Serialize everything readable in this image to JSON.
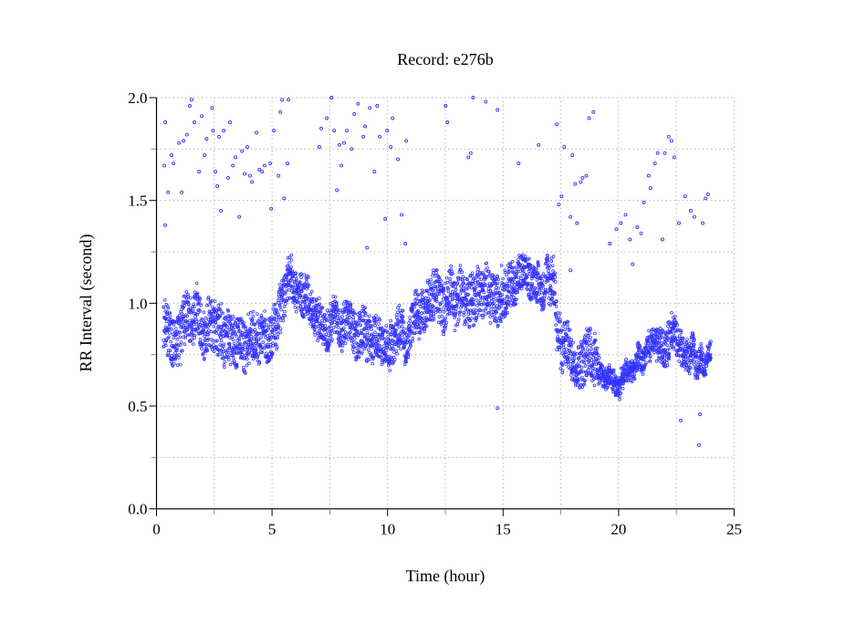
{
  "chart_data": {
    "type": "scatter",
    "title": "Record:  e276b",
    "xlabel": "Time (hour)",
    "ylabel": "RR Interval (second)",
    "xlim": [
      0,
      25
    ],
    "ylim": [
      0,
      2.0
    ],
    "xticks": [
      "0",
      "5",
      "10",
      "15",
      "20",
      "25"
    ],
    "xtick_values": [
      0,
      5,
      10,
      15,
      20,
      25
    ],
    "xminor_values": [
      2.5,
      7.5,
      12.5,
      17.5,
      22.5
    ],
    "yticks": [
      "0.0",
      "0.5",
      "1.0",
      "1.5",
      "2.0"
    ],
    "ytick_values": [
      0,
      0.5,
      1.0,
      1.5,
      2.0
    ],
    "yminor_values": [
      0.25,
      0.75,
      1.25,
      1.75
    ],
    "grid": true,
    "marker_color": "#3333ff",
    "series_note_profile": "dense RR series summarised as [hour, center, half-range]",
    "profile": [
      [
        0.3,
        0.85,
        0.15
      ],
      [
        1,
        0.88,
        0.15
      ],
      [
        2,
        0.92,
        0.15
      ],
      [
        3,
        0.85,
        0.15
      ],
      [
        4,
        0.85,
        0.15
      ],
      [
        4.8,
        0.78,
        0.15
      ],
      [
        5.2,
        0.9,
        0.15
      ],
      [
        5.7,
        1.08,
        0.12
      ],
      [
        6.5,
        1.05,
        0.12
      ],
      [
        6.8,
        0.9,
        0.12
      ],
      [
        8,
        0.88,
        0.12
      ],
      [
        9,
        0.85,
        0.15
      ],
      [
        9.5,
        0.8,
        0.13
      ],
      [
        10,
        0.8,
        0.12
      ],
      [
        10.5,
        0.88,
        0.12
      ],
      [
        10.8,
        0.8,
        0.1
      ],
      [
        11.2,
        1.0,
        0.12
      ],
      [
        12,
        1.02,
        0.15
      ],
      [
        13,
        1.0,
        0.15
      ],
      [
        14,
        1.05,
        0.15
      ],
      [
        15,
        1.05,
        0.15
      ],
      [
        15.5,
        1.1,
        0.12
      ],
      [
        16.5,
        1.12,
        0.1
      ],
      [
        17.2,
        1.05,
        0.15
      ],
      [
        17.5,
        0.8,
        0.15
      ],
      [
        18,
        0.72,
        0.12
      ],
      [
        18.5,
        0.78,
        0.15
      ],
      [
        19,
        0.8,
        0.15
      ],
      [
        19.3,
        0.68,
        0.06
      ],
      [
        20,
        0.66,
        0.06
      ],
      [
        21,
        0.68,
        0.07
      ],
      [
        21.5,
        0.75,
        0.08
      ],
      [
        21.8,
        0.8,
        0.1
      ],
      [
        22.3,
        0.85,
        0.12
      ],
      [
        22.6,
        0.72,
        0.1
      ],
      [
        23.5,
        0.73,
        0.08
      ],
      [
        24,
        0.76,
        0.05
      ]
    ],
    "outliers": [
      [
        0.34,
        1.67
      ],
      [
        0.38,
        1.88
      ],
      [
        0.38,
        1.38
      ],
      [
        0.5,
        1.54
      ],
      [
        0.65,
        1.72
      ],
      [
        0.73,
        1.68
      ],
      [
        0.97,
        1.78
      ],
      [
        1.09,
        1.54
      ],
      [
        1.17,
        1.79
      ],
      [
        1.32,
        1.82
      ],
      [
        1.44,
        1.96
      ],
      [
        1.52,
        1.99
      ],
      [
        1.64,
        1.88
      ],
      [
        1.84,
        1.64
      ],
      [
        1.96,
        1.91
      ],
      [
        2.08,
        1.72
      ],
      [
        2.17,
        1.8
      ],
      [
        2.41,
        1.95
      ],
      [
        2.45,
        1.84
      ],
      [
        2.55,
        1.64
      ],
      [
        2.63,
        1.57
      ],
      [
        2.71,
        1.81
      ],
      [
        2.79,
        1.45
      ],
      [
        2.91,
        1.84
      ],
      [
        3.1,
        1.61
      ],
      [
        3.18,
        1.88
      ],
      [
        3.3,
        1.67
      ],
      [
        3.42,
        1.71
      ],
      [
        3.58,
        1.42
      ],
      [
        3.7,
        1.74
      ],
      [
        3.81,
        1.63
      ],
      [
        3.93,
        1.76
      ],
      [
        4.05,
        1.62
      ],
      [
        4.13,
        1.59
      ],
      [
        4.33,
        1.83
      ],
      [
        4.45,
        1.65
      ],
      [
        4.57,
        1.64
      ],
      [
        4.68,
        1.67
      ],
      [
        4.92,
        1.68
      ],
      [
        4.96,
        1.46
      ],
      [
        5.08,
        1.84
      ],
      [
        5.28,
        1.62
      ],
      [
        5.36,
        1.93
      ],
      [
        5.44,
        1.99
      ],
      [
        5.52,
        1.51
      ],
      [
        5.71,
        1.99
      ],
      [
        5.67,
        1.68
      ],
      [
        7.05,
        1.76
      ],
      [
        7.13,
        1.85
      ],
      [
        7.37,
        1.9
      ],
      [
        7.57,
        2.0
      ],
      [
        7.69,
        1.84
      ],
      [
        7.81,
        1.55
      ],
      [
        7.92,
        1.77
      ],
      [
        8.0,
        1.67
      ],
      [
        8.12,
        1.78
      ],
      [
        8.24,
        1.84
      ],
      [
        8.44,
        1.75
      ],
      [
        8.56,
        1.92
      ],
      [
        8.72,
        1.97
      ],
      [
        8.95,
        1.81
      ],
      [
        9.03,
        1.86
      ],
      [
        9.11,
        1.27
      ],
      [
        9.23,
        1.95
      ],
      [
        9.43,
        1.64
      ],
      [
        9.55,
        1.96
      ],
      [
        9.66,
        1.81
      ],
      [
        9.9,
        1.41
      ],
      [
        9.98,
        1.84
      ],
      [
        10.14,
        1.76
      ],
      [
        10.22,
        1.9
      ],
      [
        10.45,
        1.7
      ],
      [
        10.61,
        1.43
      ],
      [
        10.81,
        1.79
      ],
      [
        10.77,
        1.29
      ],
      [
        12.51,
        1.96
      ],
      [
        12.59,
        1.88
      ],
      [
        13.7,
        2.0
      ],
      [
        13.5,
        1.71
      ],
      [
        13.6,
        1.73
      ],
      [
        14.25,
        1.98
      ],
      [
        14.76,
        1.94
      ],
      [
        14.76,
        0.49
      ],
      [
        15.67,
        1.68
      ],
      [
        16.54,
        1.77
      ],
      [
        17.33,
        1.87
      ],
      [
        17.41,
        1.48
      ],
      [
        17.53,
        1.52
      ],
      [
        17.65,
        1.76
      ],
      [
        17.92,
        1.42
      ],
      [
        18.0,
        1.72
      ],
      [
        18.12,
        1.58
      ],
      [
        18.2,
        1.39
      ],
      [
        18.36,
        1.59
      ],
      [
        18.44,
        1.61
      ],
      [
        18.6,
        1.62
      ],
      [
        18.72,
        1.9
      ],
      [
        18.91,
        1.93
      ],
      [
        17.92,
        1.16
      ],
      [
        19.62,
        1.29
      ],
      [
        19.9,
        1.36
      ],
      [
        20.1,
        1.39
      ],
      [
        20.3,
        1.43
      ],
      [
        20.49,
        1.31
      ],
      [
        20.61,
        1.19
      ],
      [
        20.81,
        1.37
      ],
      [
        20.97,
        1.34
      ],
      [
        21.09,
        1.49
      ],
      [
        21.3,
        1.62
      ],
      [
        21.38,
        1.56
      ],
      [
        21.57,
        1.68
      ],
      [
        21.69,
        1.73
      ],
      [
        21.9,
        1.31
      ],
      [
        22.0,
        1.73
      ],
      [
        22.17,
        1.81
      ],
      [
        22.29,
        1.79
      ],
      [
        22.41,
        1.71
      ],
      [
        22.61,
        1.39
      ],
      [
        22.69,
        0.43
      ],
      [
        22.88,
        1.52
      ],
      [
        23.12,
        1.45
      ],
      [
        23.28,
        1.42
      ],
      [
        23.48,
        0.31
      ],
      [
        23.52,
        0.46
      ],
      [
        23.64,
        1.39
      ],
      [
        23.76,
        1.51
      ],
      [
        23.87,
        1.53
      ]
    ]
  }
}
